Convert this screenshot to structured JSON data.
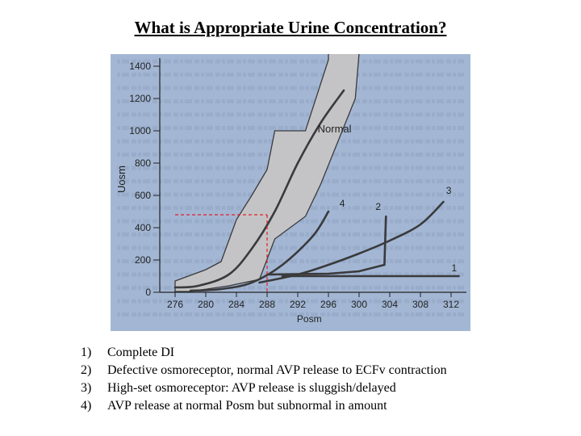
{
  "title": "What is Appropriate Urine Concentration?",
  "colors": {
    "figure_background": "#a3b7d4",
    "normal_band": "#c4c4c6",
    "curve": "#3a3a3c",
    "guide_line": "#e0202a"
  },
  "chart_data": {
    "type": "line",
    "xlabel": "Posm",
    "ylabel": "Uosm",
    "xlim": [
      274,
      314
    ],
    "ylim": [
      0,
      1450
    ],
    "x_ticks": [
      "276",
      "280",
      "284",
      "288",
      "292",
      "296",
      "300",
      "304",
      "308",
      "312"
    ],
    "y_ticks": [
      "0",
      "200",
      "400",
      "600",
      "800",
      "1000",
      "1200",
      "1400"
    ],
    "x_tick_values": [
      276,
      280,
      284,
      288,
      292,
      296,
      300,
      304,
      308,
      312
    ],
    "y_tick_values": [
      0,
      200,
      400,
      600,
      800,
      1000,
      1200,
      1400
    ],
    "normal_range": {
      "label": "Normal",
      "upper": [
        [
          276,
          70
        ],
        [
          280,
          140
        ],
        [
          282,
          190
        ],
        [
          284,
          450
        ],
        [
          286,
          600
        ],
        [
          288,
          760
        ],
        [
          289,
          1000
        ],
        [
          293,
          1000
        ],
        [
          296,
          1440
        ],
        [
          296,
          1480
        ]
      ],
      "lower": [
        [
          300,
          1480
        ],
        [
          299.5,
          1200
        ],
        [
          295,
          670
        ],
        [
          293,
          470
        ],
        [
          289,
          330
        ],
        [
          287,
          80
        ],
        [
          283,
          40
        ],
        [
          278,
          5
        ],
        [
          276,
          5
        ]
      ]
    },
    "series": [
      {
        "name": "Normal",
        "points": [
          [
            276,
            30
          ],
          [
            279,
            40
          ],
          [
            283,
            110
          ],
          [
            286,
            270
          ],
          [
            289,
            500
          ],
          [
            292,
            800
          ],
          [
            295,
            1050
          ],
          [
            298,
            1250
          ]
        ],
        "label_at": [
          296.8,
          990
        ]
      },
      {
        "name": "1",
        "points": [
          [
            290,
            100
          ],
          [
            297,
            100
          ],
          [
            304,
            100
          ],
          [
            313,
            100
          ]
        ],
        "label_at": [
          312.4,
          130
        ]
      },
      {
        "name": "2",
        "points": [
          [
            288,
            110
          ],
          [
            296,
            115
          ],
          [
            300,
            130
          ],
          [
            303.3,
            170
          ],
          [
            303.5,
            470
          ]
        ],
        "label_at": [
          302.5,
          510
        ]
      },
      {
        "name": "3",
        "points": [
          [
            287,
            60
          ],
          [
            292,
            110
          ],
          [
            296,
            170
          ],
          [
            300,
            240
          ],
          [
            304,
            320
          ],
          [
            308,
            420
          ],
          [
            311,
            560
          ]
        ],
        "label_at": [
          311.7,
          610
        ]
      },
      {
        "name": "4",
        "points": [
          [
            278,
            10
          ],
          [
            282,
            20
          ],
          [
            286,
            60
          ],
          [
            290,
            170
          ],
          [
            294,
            350
          ],
          [
            296,
            500
          ]
        ],
        "label_at": [
          297.8,
          530
        ]
      }
    ],
    "guide": {
      "x": 288,
      "y": 480,
      "from_x": 276,
      "style": "dashed red"
    }
  },
  "legend": [
    {
      "num": "1)",
      "text": "Complete DI"
    },
    {
      "num": "2)",
      "text": "Defective osmoreceptor, normal AVP release to ECFv contraction"
    },
    {
      "num": "3)",
      "text": "High-set osmoreceptor: AVP release is sluggish/delayed"
    },
    {
      "num": "4)",
      "text": "AVP release at normal Posm but subnormal in amount"
    }
  ]
}
